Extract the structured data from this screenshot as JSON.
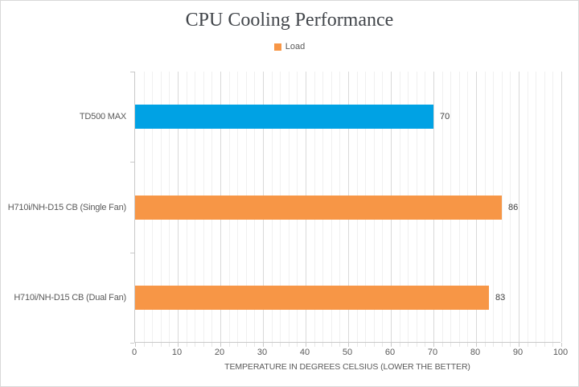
{
  "chart_data": {
    "type": "bar",
    "orientation": "horizontal",
    "title": "CPU Cooling Performance",
    "categories": [
      "TD500 MAX",
      "H710i/NH-D15 CB (Single Fan)",
      "H710i/NH-D15 CB (Dual Fan)"
    ],
    "series": [
      {
        "name": "Load",
        "values": [
          70,
          86,
          83
        ],
        "point_colors": [
          "#00A2E4",
          "#F79646",
          "#F79646"
        ]
      }
    ],
    "data_labels": [
      "70",
      "86",
      "83"
    ],
    "xlabel": "TEMPERATURE IN DEGREES CELSIUS (LOWER THE BETTER)",
    "ylabel": "",
    "xlim": [
      0,
      100
    ],
    "x_major_unit": 10,
    "x_minor_unit": 2,
    "x_tick_labels": [
      "0",
      "10",
      "20",
      "30",
      "40",
      "50",
      "60",
      "70",
      "80",
      "90",
      "100"
    ],
    "legend": {
      "position": "top",
      "label": "Load",
      "swatch_color": "#F79646"
    },
    "grid": {
      "major_vertical": true,
      "minor_vertical": true,
      "horizontal": false
    }
  },
  "colors": {
    "blue_bar": "#00A2E4",
    "orange_bar": "#F79646",
    "title_text": "#42464B",
    "axis_text": "#595959",
    "data_label_text": "#404040",
    "gridline_major": "#D9D9D9",
    "gridline_minor": "#F0F0F0",
    "axis_line": "#C9C9C9",
    "chart_border": "#D9D9D9",
    "background": "#FFFFFF"
  }
}
